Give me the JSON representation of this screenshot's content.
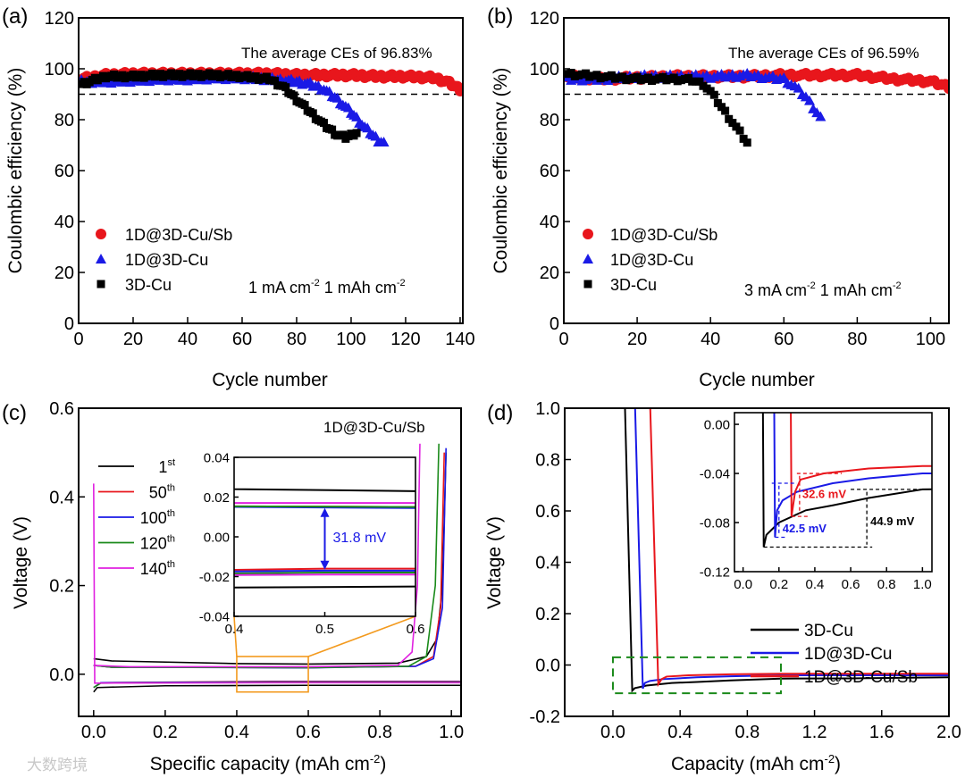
{
  "watermark": "大数跨境",
  "chart_data": [
    {
      "panel": "(a)",
      "type": "scatter",
      "xlabel": "Cycle number",
      "ylabel": "Coulombic efficiency (%)",
      "xlim": [
        0,
        141
      ],
      "ylim": [
        0,
        120
      ],
      "x_ticks": [
        0,
        20,
        40,
        60,
        80,
        100,
        120,
        140
      ],
      "x_tick_labels": [
        "0",
        "20",
        "40",
        "60",
        "80",
        "100",
        "120",
        "140"
      ],
      "y_ticks": [
        0,
        20,
        40,
        60,
        80,
        100,
        120
      ],
      "y_tick_labels": [
        "0",
        "20",
        "40",
        "60",
        "80",
        "100",
        "120"
      ],
      "reference_line": 90,
      "annotation": "The average CEs of 96.83%",
      "condition": [
        {
          "t": "1 mA cm"
        },
        {
          "t": "-2",
          "sup": true
        },
        {
          "t": " 1 mAh cm"
        },
        {
          "t": "-2",
          "sup": true
        }
      ],
      "legend_placement": "bottom-left",
      "series": [
        {
          "name": "1D@3D-Cu/Sb",
          "marker": "circle",
          "color": "#e8161c",
          "x": [
            1,
            10,
            20,
            30,
            40,
            50,
            60,
            70,
            80,
            90,
            100,
            110,
            120,
            130,
            135,
            140
          ],
          "y": [
            96,
            97.5,
            98,
            98,
            98,
            98,
            98,
            98,
            97.5,
            97.5,
            97.5,
            97,
            97,
            96.5,
            95,
            92
          ]
        },
        {
          "name": "1D@3D-Cu",
          "marker": "triangle",
          "color": "#1a1ae6",
          "x": [
            1,
            10,
            20,
            30,
            40,
            50,
            60,
            70,
            80,
            85,
            90,
            95,
            100,
            105,
            110,
            112
          ],
          "y": [
            95,
            95,
            95.5,
            96,
            96,
            96.5,
            96.5,
            96,
            95,
            94,
            92,
            88,
            83,
            77,
            72,
            71
          ]
        },
        {
          "name": "3D-Cu",
          "marker": "square",
          "color": "#000000",
          "x": [
            1,
            10,
            20,
            30,
            40,
            50,
            60,
            70,
            75,
            80,
            85,
            90,
            95,
            98,
            100,
            102
          ],
          "y": [
            94,
            97,
            97,
            97.5,
            97.5,
            97.5,
            97,
            96,
            93,
            88,
            83,
            78,
            74,
            73,
            74,
            75
          ]
        }
      ]
    },
    {
      "panel": "(b)",
      "type": "scatter",
      "xlabel": "Cycle number",
      "ylabel": "Coulombic efficiency (%)",
      "xlim": [
        0,
        105
      ],
      "ylim": [
        0,
        120
      ],
      "x_ticks": [
        0,
        20,
        40,
        60,
        80,
        100
      ],
      "x_tick_labels": [
        "0",
        "20",
        "40",
        "60",
        "80",
        "100"
      ],
      "y_ticks": [
        0,
        20,
        40,
        60,
        80,
        100,
        120
      ],
      "y_tick_labels": [
        "0",
        "20",
        "40",
        "60",
        "80",
        "100",
        "120"
      ],
      "reference_line": 90,
      "annotation": "The average CEs of 96.59%",
      "condition": [
        {
          "t": "3 mA cm"
        },
        {
          "t": "-2",
          "sup": true
        },
        {
          "t": " 1 mAh cm"
        },
        {
          "t": "-2",
          "sup": true
        }
      ],
      "legend_placement": "bottom-left",
      "series": [
        {
          "name": "1D@3D-Cu/Sb",
          "marker": "circle",
          "color": "#e8161c",
          "x": [
            1,
            10,
            20,
            30,
            40,
            50,
            60,
            70,
            80,
            90,
            100,
            105
          ],
          "y": [
            97,
            96,
            96.5,
            97,
            97,
            97,
            97.5,
            97.5,
            97.5,
            96,
            95,
            93
          ]
        },
        {
          "name": "1D@3D-Cu",
          "marker": "triangle",
          "color": "#1a1ae6",
          "x": [
            1,
            10,
            20,
            30,
            40,
            50,
            60,
            63,
            66,
            68,
            70
          ],
          "y": [
            96,
            96,
            97,
            97,
            97,
            97.5,
            96,
            93,
            89,
            85,
            81
          ]
        },
        {
          "name": "3D-Cu",
          "marker": "square",
          "color": "#000000",
          "x": [
            1,
            10,
            20,
            30,
            35,
            38,
            40,
            42,
            44,
            46,
            48,
            50
          ],
          "y": [
            98,
            97,
            96,
            96,
            95.5,
            94,
            91,
            87,
            83,
            79,
            75,
            71
          ]
        }
      ]
    },
    {
      "panel": "(c)",
      "type": "line",
      "title": "1D@3D-Cu/Sb",
      "xlabel": [
        {
          "t": "Specific capacity (mAh cm"
        },
        {
          "t": "-2",
          "sup": true
        },
        {
          "t": ")"
        }
      ],
      "ylabel": "Voltage (V)",
      "xlim": [
        -0.042,
        1.027
      ],
      "ylim": [
        -0.095,
        0.6
      ],
      "x_ticks": [
        0,
        0.2,
        0.4,
        0.6,
        0.8,
        1.0
      ],
      "x_tick_labels": [
        "0.0",
        "0.2",
        "0.4",
        "0.6",
        "0.8",
        "1.0"
      ],
      "y_ticks": [
        0,
        0.2,
        0.4,
        0.6
      ],
      "y_tick_labels": [
        "0.0",
        "0.2",
        "0.4",
        "0.6"
      ],
      "legend_placement": "top-left",
      "inset": {
        "xlim": [
          0.4,
          0.6
        ],
        "ylim": [
          -0.04,
          0.04
        ],
        "x_ticks": [
          0.4,
          0.5,
          0.6
        ],
        "x_tick_labels": [
          "0.4",
          "0.5",
          "0.6"
        ],
        "y_ticks": [
          -0.04,
          -0.02,
          0,
          0.02,
          0.04
        ],
        "y_tick_labels": [
          "-0.04",
          "-0.02",
          "0.00",
          "0.02",
          "0.04"
        ],
        "annotation": "31.8 mV"
      },
      "series": [
        {
          "name": "1",
          "suffix": "st",
          "color": "#000000",
          "discharge": [
            [
              0,
              -0.04
            ],
            [
              0.01,
              -0.03
            ],
            [
              0.2,
              -0.026
            ],
            [
              0.6,
              -0.025
            ],
            [
              1.03,
              -0.025
            ]
          ],
          "charge": [
            [
              0,
              0.035
            ],
            [
              0.05,
              0.03
            ],
            [
              0.4,
              0.024
            ],
            [
              0.6,
              0.023
            ],
            [
              0.85,
              0.025
            ],
            [
              0.93,
              0.04
            ],
            [
              0.96,
              0.08
            ],
            [
              0.975,
              0.2
            ],
            [
              0.985,
              0.5
            ]
          ]
        },
        {
          "name": "50",
          "suffix": "th",
          "color": "#e8161c",
          "discharge": [
            [
              0,
              -0.03
            ],
            [
              0.02,
              -0.019
            ],
            [
              0.5,
              -0.016
            ],
            [
              1.03,
              -0.016
            ]
          ],
          "charge": [
            [
              0,
              0.02
            ],
            [
              0.05,
              0.016
            ],
            [
              0.6,
              0.015
            ],
            [
              0.9,
              0.018
            ],
            [
              0.95,
              0.04
            ],
            [
              0.97,
              0.15
            ],
            [
              0.98,
              0.5
            ]
          ]
        },
        {
          "name": "100",
          "suffix": "th",
          "color": "#1a1ae6",
          "discharge": [
            [
              0,
              -0.03
            ],
            [
              0.02,
              -0.019
            ],
            [
              0.5,
              -0.017
            ],
            [
              1.03,
              -0.017
            ]
          ],
          "charge": [
            [
              0,
              0.02
            ],
            [
              0.05,
              0.016
            ],
            [
              0.6,
              0.0145
            ],
            [
              0.9,
              0.018
            ],
            [
              0.95,
              0.035
            ],
            [
              0.975,
              0.15
            ],
            [
              0.985,
              0.51
            ]
          ]
        },
        {
          "name": "120",
          "suffix": "th",
          "color": "#1a8a1a",
          "discharge": [
            [
              0,
              -0.03
            ],
            [
              0.02,
              -0.02
            ],
            [
              0.5,
              -0.018
            ],
            [
              1.03,
              -0.018
            ]
          ],
          "charge": [
            [
              0,
              0.02
            ],
            [
              0.05,
              0.016
            ],
            [
              0.6,
              0.015
            ],
            [
              0.88,
              0.018
            ],
            [
              0.93,
              0.04
            ],
            [
              0.955,
              0.2
            ],
            [
              0.965,
              0.52
            ]
          ]
        },
        {
          "name": "140",
          "suffix": "th",
          "color": "#e020e0",
          "discharge": [
            [
              0,
              0.43
            ],
            [
              0.003,
              -0.02
            ],
            [
              0.5,
              -0.019
            ],
            [
              1.03,
              -0.019
            ]
          ],
          "charge": [
            [
              0,
              0.02
            ],
            [
              0.1,
              0.017
            ],
            [
              0.6,
              0.017
            ],
            [
              0.85,
              0.02
            ],
            [
              0.89,
              0.05
            ],
            [
              0.905,
              0.2
            ],
            [
              0.912,
              0.52
            ]
          ]
        }
      ]
    },
    {
      "panel": "(d)",
      "type": "line",
      "xlabel": [
        {
          "t": "Capacity (mAh cm"
        },
        {
          "t": "-2",
          "sup": true
        },
        {
          "t": ")"
        }
      ],
      "ylabel": "Voltage (V)",
      "xlim": [
        -0.287,
        2.0
      ],
      "ylim": [
        -0.2,
        1.0
      ],
      "x_ticks": [
        0,
        0.4,
        0.8,
        1.2,
        1.6,
        2.0
      ],
      "x_tick_labels": [
        "0.0",
        "0.4",
        "0.8",
        "1.2",
        "1.6",
        "2.0"
      ],
      "y_ticks": [
        -0.2,
        0,
        0.2,
        0.4,
        0.6,
        0.8,
        1.0
      ],
      "y_tick_labels": [
        "-0.2",
        "0.0",
        "0.2",
        "0.4",
        "0.6",
        "0.8",
        "1.0"
      ],
      "legend_placement": "bottom-right",
      "inset": {
        "xlim": [
          -0.048,
          1.053
        ],
        "ylim": [
          -0.12,
          0.0095
        ],
        "x_ticks": [
          0,
          0.2,
          0.4,
          0.6,
          0.8,
          1.0
        ],
        "x_tick_labels": [
          "0.0",
          "0.2",
          "0.4",
          "0.6",
          "0.8",
          "1.0"
        ],
        "y_ticks": [
          -0.12,
          -0.08,
          -0.04,
          0
        ],
        "y_tick_labels": [
          "-0.12",
          "-0.08",
          "-0.04",
          "0.00"
        ],
        "annotations": [
          {
            "text": "32.6 mV",
            "color": "#e8161c"
          },
          {
            "text": "42.5 mV",
            "color": "#1a1ae6"
          },
          {
            "text": "44.9 mV",
            "color": "#000000"
          }
        ]
      },
      "series": [
        {
          "name": "3D-Cu",
          "color": "#000000",
          "points": [
            [
              0.07,
              1.05
            ],
            [
              0.115,
              -0.1
            ],
            [
              0.13,
              -0.09
            ],
            [
              0.2,
              -0.08
            ],
            [
              0.35,
              -0.07
            ],
            [
              0.5,
              -0.066
            ],
            [
              0.7,
              -0.06
            ],
            [
              1.0,
              -0.053
            ],
            [
              1.4,
              -0.052
            ],
            [
              2.0,
              -0.048
            ]
          ]
        },
        {
          "name": "1D@3D-Cu",
          "color": "#1a1ae6",
          "points": [
            [
              0.13,
              1.05
            ],
            [
              0.178,
              -0.092
            ],
            [
              0.19,
              -0.07
            ],
            [
              0.22,
              -0.062
            ],
            [
              0.3,
              -0.055
            ],
            [
              0.5,
              -0.048
            ],
            [
              0.7,
              -0.044
            ],
            [
              1.0,
              -0.04
            ],
            [
              1.5,
              -0.04
            ],
            [
              2.0,
              -0.04
            ]
          ]
        },
        {
          "name": "1D@3D-Cu/Sb",
          "color": "#e8161c",
          "points": [
            [
              0.22,
              1.05
            ],
            [
              0.27,
              -0.075
            ],
            [
              0.29,
              -0.055
            ],
            [
              0.32,
              -0.045
            ],
            [
              0.45,
              -0.04
            ],
            [
              0.7,
              -0.036
            ],
            [
              1.0,
              -0.034
            ],
            [
              1.5,
              -0.034
            ],
            [
              2.0,
              -0.034
            ]
          ]
        }
      ]
    }
  ]
}
